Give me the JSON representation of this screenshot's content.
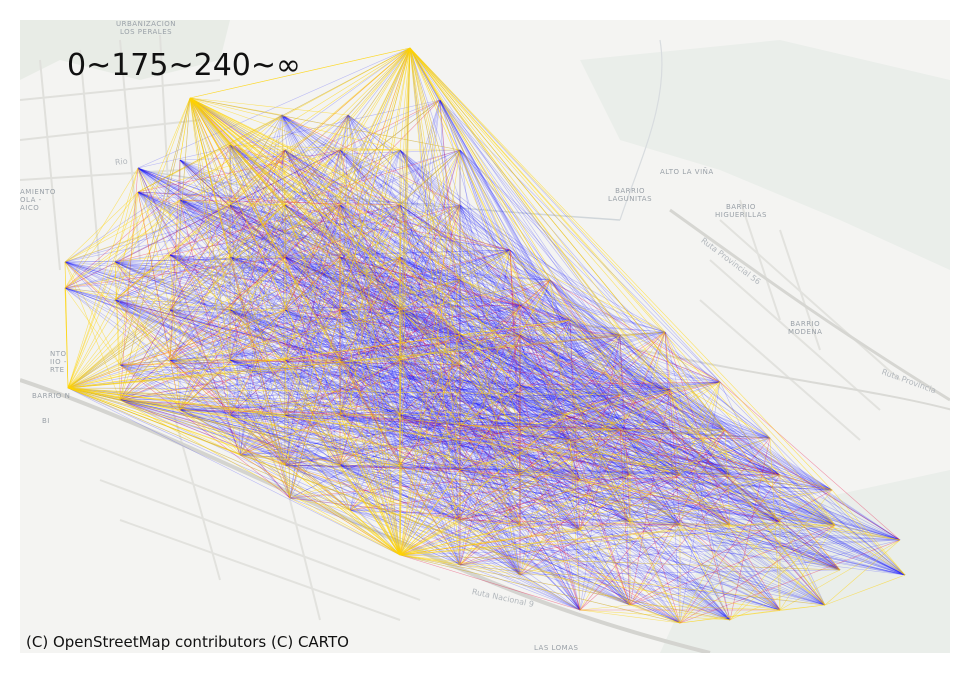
{
  "legend": {
    "title": "0~175~240~∞"
  },
  "attribution": "(C) OpenStreetMap contributors (C) CARTO",
  "line_colors": {
    "near": "#ffd400",
    "mid": "#e8003a",
    "far": "#1a1aff"
  },
  "basemap": {
    "places": [
      "URBANIZACION\nLOS PERALES",
      "ALTO LA VIÑA",
      "BARRIO\nLAGUNITAS",
      "BARRIO\nHIGUERILLAS",
      "BARRIO\nMODENA",
      "LAS LOMAS",
      "AMIENTO\nOLA -\nAICO",
      "NTO\nIIO -\nRTE",
      "BARRIO N",
      "BI"
    ],
    "roads": [
      "Ruta Provincial 56",
      "Ruta Provincia",
      "Ruta Nacional 9",
      "Rio"
    ]
  }
}
